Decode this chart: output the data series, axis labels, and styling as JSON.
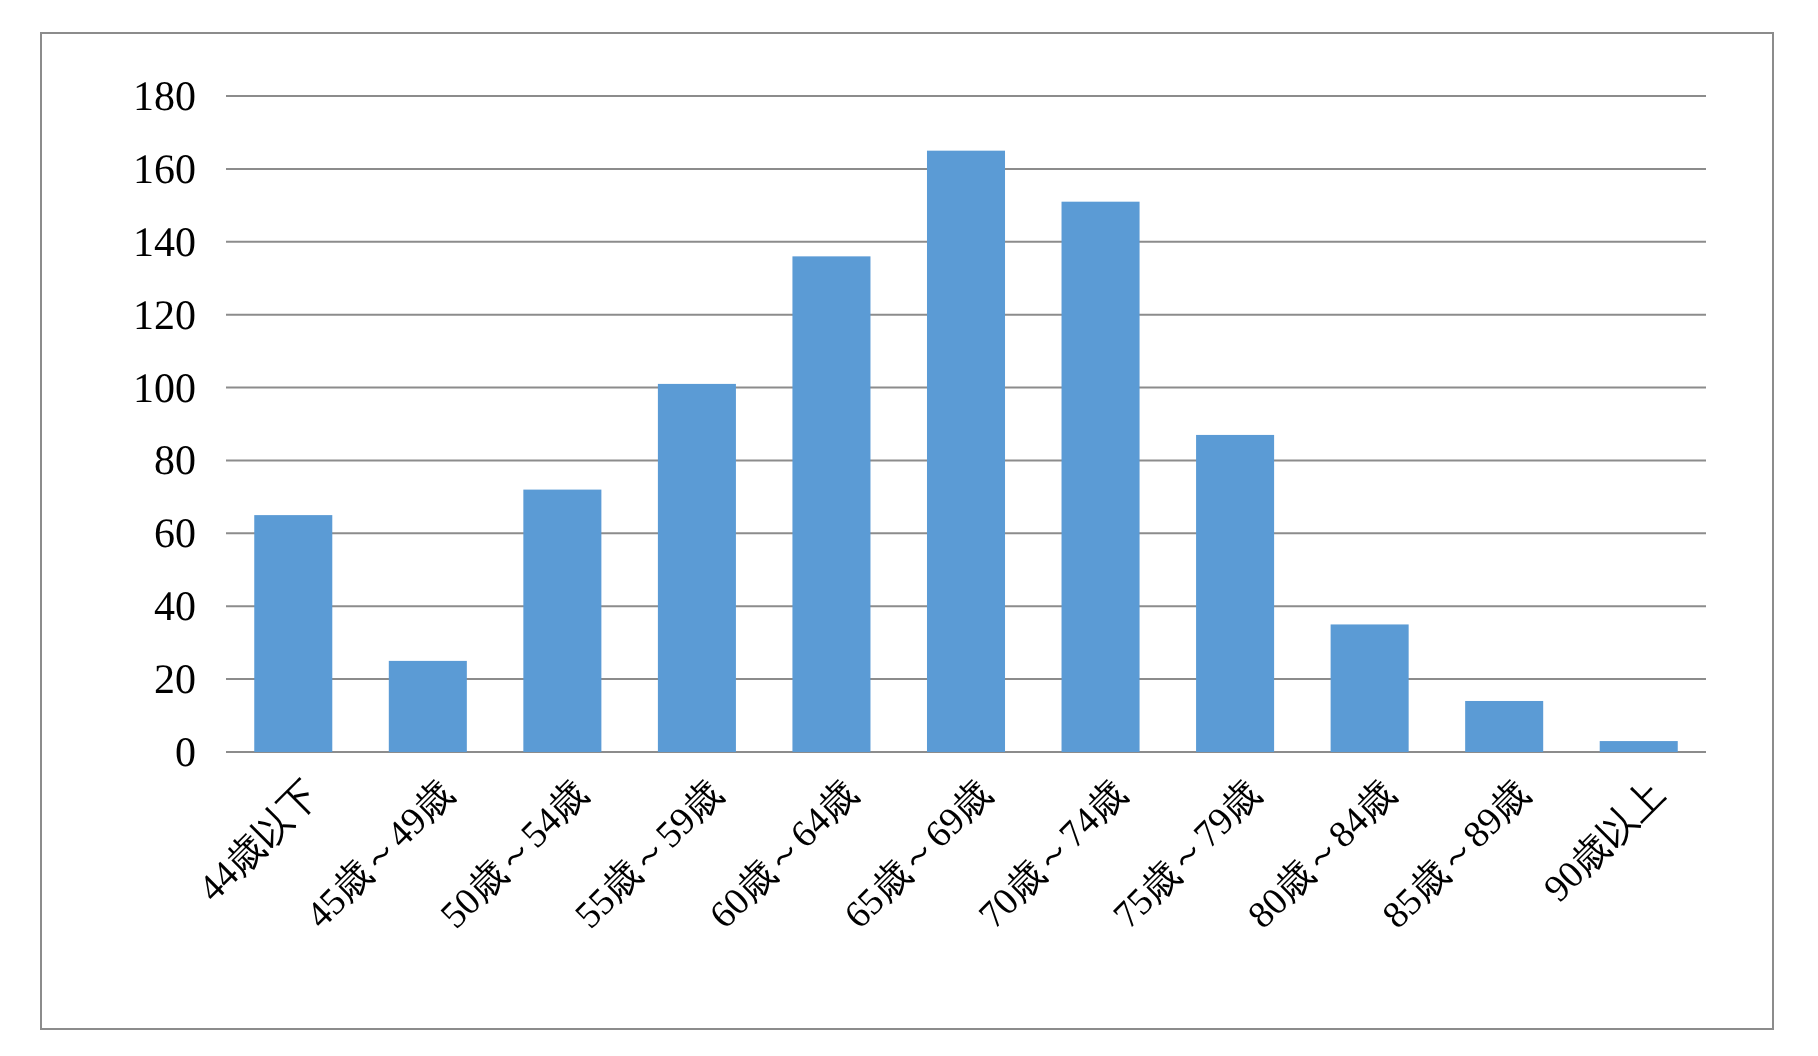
{
  "chart_data": {
    "type": "bar",
    "categories": [
      "44歳以下",
      "45歳～49歳",
      "50歳～54歳",
      "55歳～59歳",
      "60歳～64歳",
      "65歳～69歳",
      "70歳～74歳",
      "75歳～79歳",
      "80歳～84歳",
      "85歳～89歳",
      "90歳以上"
    ],
    "values": [
      65,
      25,
      72,
      101,
      136,
      165,
      151,
      87,
      35,
      14,
      3
    ],
    "color": "#5b9bd5",
    "ylim": [
      0,
      180
    ],
    "yticks": [
      0,
      20,
      40,
      60,
      80,
      100,
      120,
      140,
      160,
      180
    ],
    "grid": "y"
  }
}
